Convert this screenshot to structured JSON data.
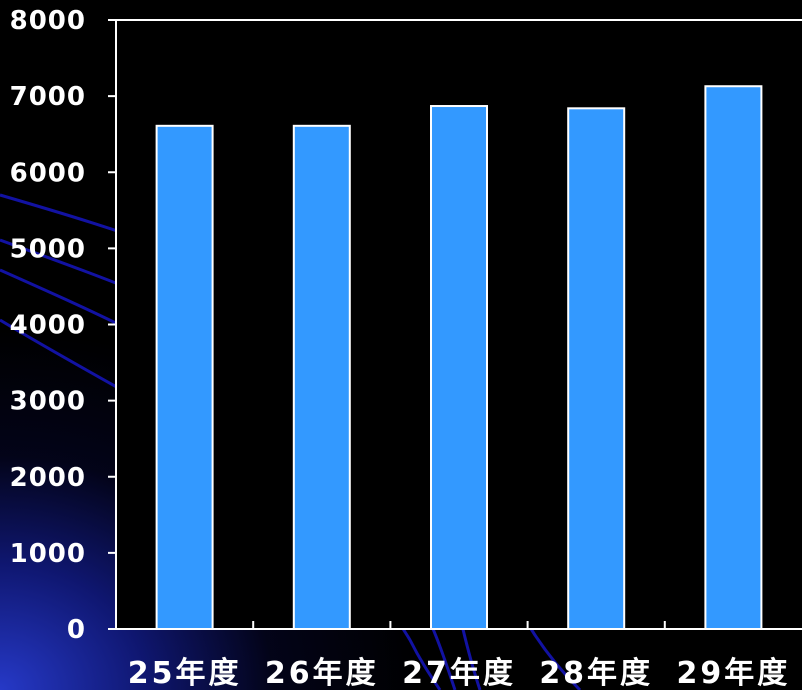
{
  "chart_data": {
    "type": "bar",
    "categories": [
      "25年度",
      "26年度",
      "27年度",
      "28年度",
      "29年度"
    ],
    "values": [
      6610,
      6610,
      6870,
      6840,
      7130
    ],
    "ylim": [
      0,
      8000
    ],
    "yticks": [
      "0",
      "1000",
      "2000",
      "3000",
      "4000",
      "5000",
      "6000",
      "7000",
      "8000"
    ],
    "grid": false,
    "legend": "none"
  },
  "colors": {
    "bar_fill": "#3399ff",
    "bar_stroke": "#ffffff",
    "axis": "#ffffff",
    "plot_background": "#000000",
    "background_glow": "#1a2ad0",
    "decor_lines": "#1414b4"
  }
}
